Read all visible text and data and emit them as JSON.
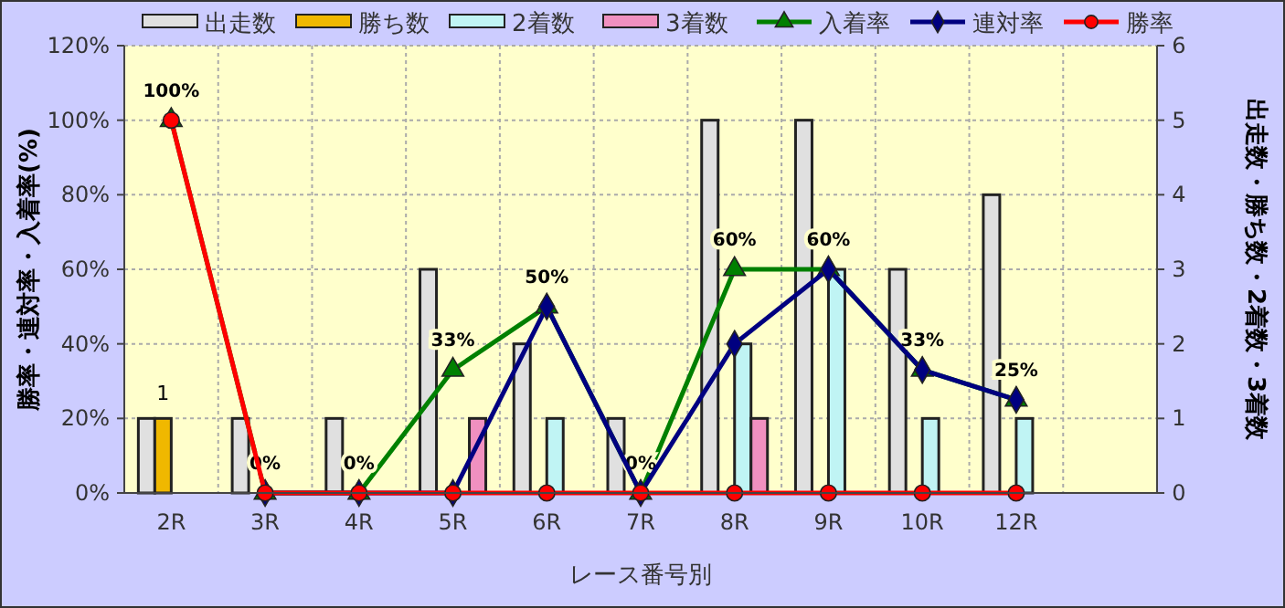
{
  "chart_data": {
    "type": "bar",
    "xlabel": "レース番号別",
    "ylabel": "勝率・連対率・入着率(%)",
    "y2label": "出走数・勝ち数・2着数・3着数",
    "categories": [
      "2R",
      "3R",
      "4R",
      "5R",
      "6R",
      "7R",
      "8R",
      "9R",
      "10R",
      "12R",
      null
    ],
    "series": [
      {
        "name": "出走数",
        "axis": "y2",
        "color": "#e0e0e0",
        "values": [
          1,
          1,
          1,
          3,
          2,
          1,
          5,
          5,
          3,
          4,
          null
        ]
      },
      {
        "name": "勝ち数",
        "axis": "y2",
        "color": "#f0b800",
        "values": [
          1,
          0,
          0,
          0,
          0,
          0,
          0,
          0,
          0,
          0,
          null
        ],
        "value_labels": [
          "1",
          null,
          null,
          null,
          null,
          null,
          null,
          null,
          null,
          null,
          null
        ]
      },
      {
        "name": "2着数",
        "axis": "y2",
        "color": "#c0f4f4",
        "values": [
          0,
          0,
          0,
          0,
          1,
          0,
          2,
          3,
          1,
          1,
          null
        ]
      },
      {
        "name": "3着数",
        "axis": "y2",
        "color": "#f090c0",
        "values": [
          0,
          0,
          0,
          1,
          0,
          0,
          1,
          0,
          0,
          0,
          null
        ]
      },
      {
        "name": "入着率",
        "type": "line",
        "color": "#008000",
        "marker": "triangle",
        "values": [
          100,
          0,
          0,
          33,
          50,
          0,
          60,
          60,
          33,
          25,
          null
        ],
        "value_labels": [
          "100%",
          "0%",
          "0%",
          "33%",
          "50%",
          "0%",
          "60%",
          "60%",
          "33%",
          "25%",
          null
        ]
      },
      {
        "name": "連対率",
        "type": "line",
        "color": "#000080",
        "marker": "diamond",
        "values": [
          null,
          0,
          0,
          0,
          50,
          0,
          40,
          60,
          33,
          25,
          null
        ]
      },
      {
        "name": "勝率",
        "type": "line",
        "color": "#ff0000",
        "marker": "circle",
        "values": [
          100,
          0,
          0,
          0,
          0,
          0,
          0,
          0,
          0,
          0,
          null
        ]
      }
    ],
    "ylim": [
      0,
      120
    ],
    "yticks": [
      {
        "value": 0,
        "label": "0%"
      },
      {
        "value": 20,
        "label": "20%"
      },
      {
        "value": 40,
        "label": "40%"
      },
      {
        "value": 60,
        "label": "60%"
      },
      {
        "value": 80,
        "label": "80%"
      },
      {
        "value": 100,
        "label": "100%"
      },
      {
        "value": 120,
        "label": "120%"
      }
    ],
    "y2lim": [
      0,
      6
    ],
    "y2ticks": [
      0,
      1,
      2,
      3,
      4,
      5,
      6
    ],
    "grid": true,
    "legend": "top"
  }
}
